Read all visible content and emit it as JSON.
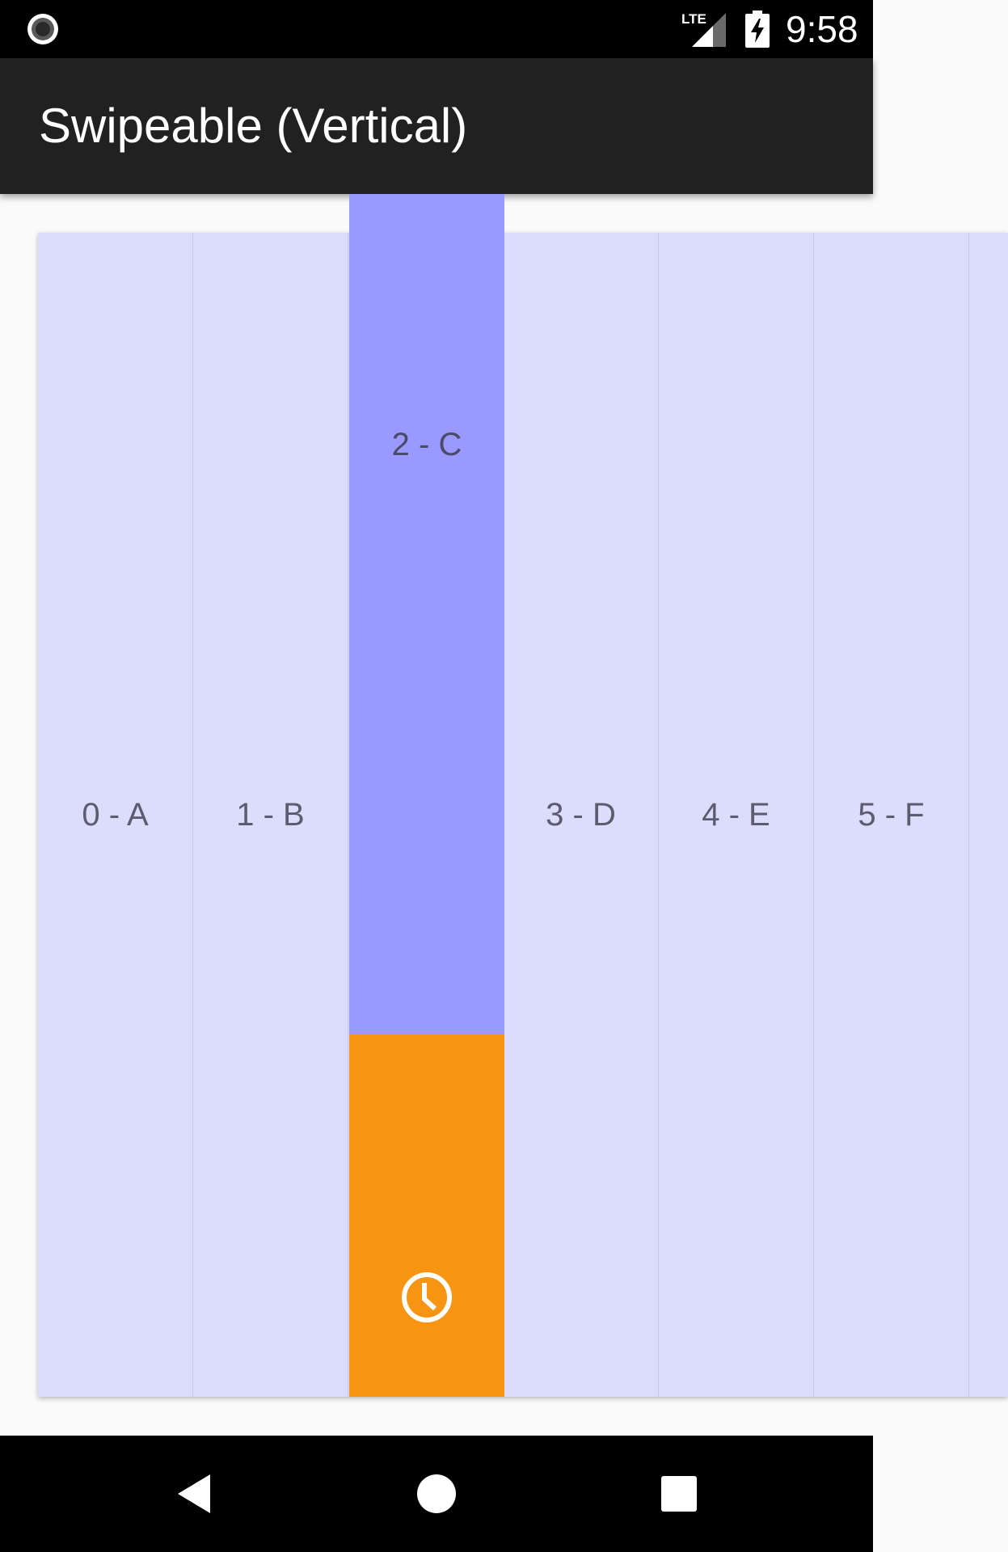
{
  "status_bar": {
    "time": "9:58",
    "network_label": "LTE",
    "icons": [
      "screen-record-icon",
      "lte-signal-icon",
      "battery-charging-icon"
    ]
  },
  "app_bar": {
    "title": "Swipeable (Vertical)"
  },
  "list": {
    "items": [
      {
        "label": "0 - A"
      },
      {
        "label": "1 - B"
      },
      {
        "label": "2 - C"
      },
      {
        "label": "3 - D"
      },
      {
        "label": "4 - E"
      },
      {
        "label": "5 - F"
      }
    ],
    "swiped_item": {
      "label": "2 - C",
      "action_icon": "snooze-clock-icon"
    }
  },
  "colors": {
    "item_background": "#DCDCFC",
    "swiped_item_background": "#9999FF",
    "action_background": "#F79411",
    "app_bar": "#212121",
    "page_background": "#FAFAFA"
  },
  "nav_bar": {
    "buttons": [
      "back-icon",
      "home-icon",
      "recents-icon"
    ]
  }
}
